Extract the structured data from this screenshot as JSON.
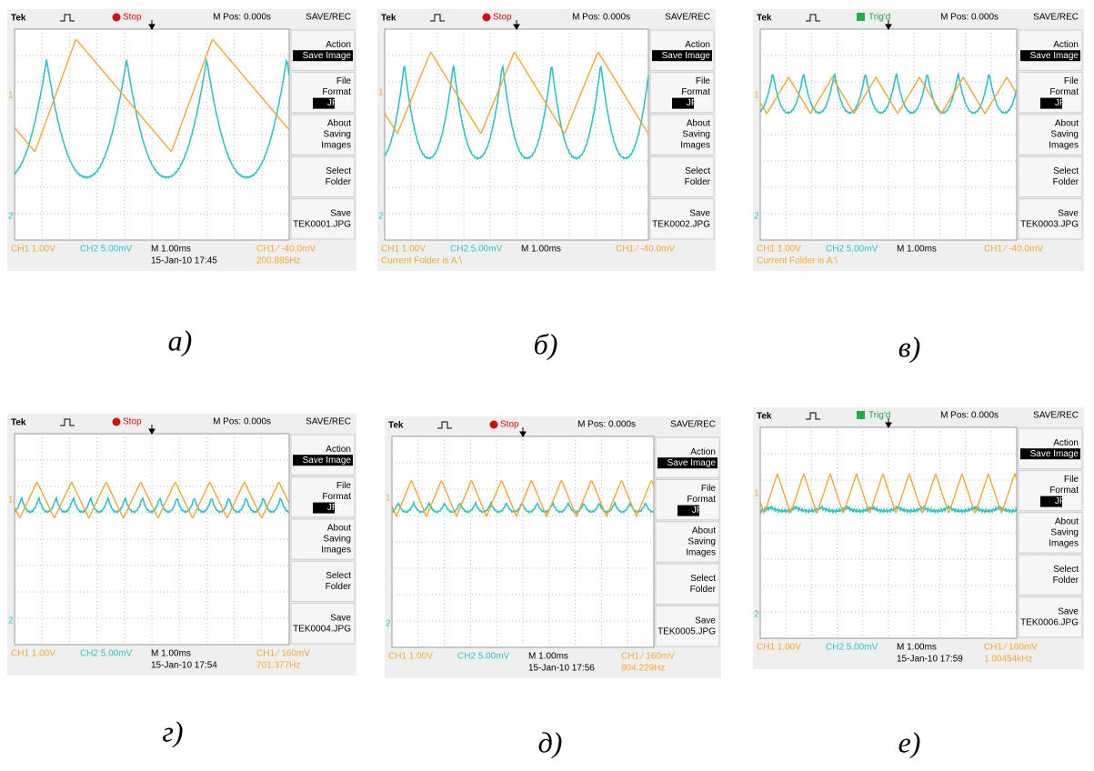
{
  "common": {
    "brand": "Tek",
    "mpos": "M Pos: 0.000s",
    "mode": "SAVE/REC",
    "menu": [
      [
        "Action",
        "Save Image"
      ],
      [
        "File",
        "Format",
        "JPEG"
      ],
      [
        "About",
        "Saving",
        "Images"
      ],
      [
        "Select",
        "Folder"
      ],
      [
        "Save"
      ]
    ],
    "ch1": "CH1 1.00V",
    "ch2": "CH2 5.00mV",
    "timebase": "M 1.00ms",
    "marker1": "1",
    "marker2": "2"
  },
  "panels": [
    {
      "status": "Stop",
      "file": "TEK0001.JPG",
      "trigger": "CH1 ⁄ -40.0mV",
      "date": "15-Jan-10 17:45",
      "freq": "200.885Hz",
      "caption": "а)"
    },
    {
      "status": "Stop",
      "file": "TEK0002.JPG",
      "trigger": "CH1 ⁄ -40.0mV",
      "folder": "Current Folder is A:\\",
      "caption": "б)"
    },
    {
      "status": "Trig'd",
      "file": "TEK0003.JPG",
      "trigger": "CH1 ⁄ -40.0mV",
      "folder": "Current Folder is A:\\",
      "caption": "в)"
    },
    {
      "status": "Stop",
      "file": "TEK0004.JPG",
      "trigger": "CH1 ⁄ 160mV",
      "date": "15-Jan-10 17:54",
      "freq": "701.377Hz",
      "caption": "г)"
    },
    {
      "status": "Stop",
      "file": "TEK0005.JPG",
      "trigger": "CH1 ⁄ 160mV",
      "date": "15-Jan-10 17:56",
      "freq": "804.229Hz",
      "caption": "д)"
    },
    {
      "status": "Trig'd",
      "file": "TEK0006.JPG",
      "trigger": "CH1 ⁄ 160mV",
      "date": "15-Jan-10 17:59",
      "freq": "1.00454kHz",
      "caption": "е)"
    }
  ]
}
